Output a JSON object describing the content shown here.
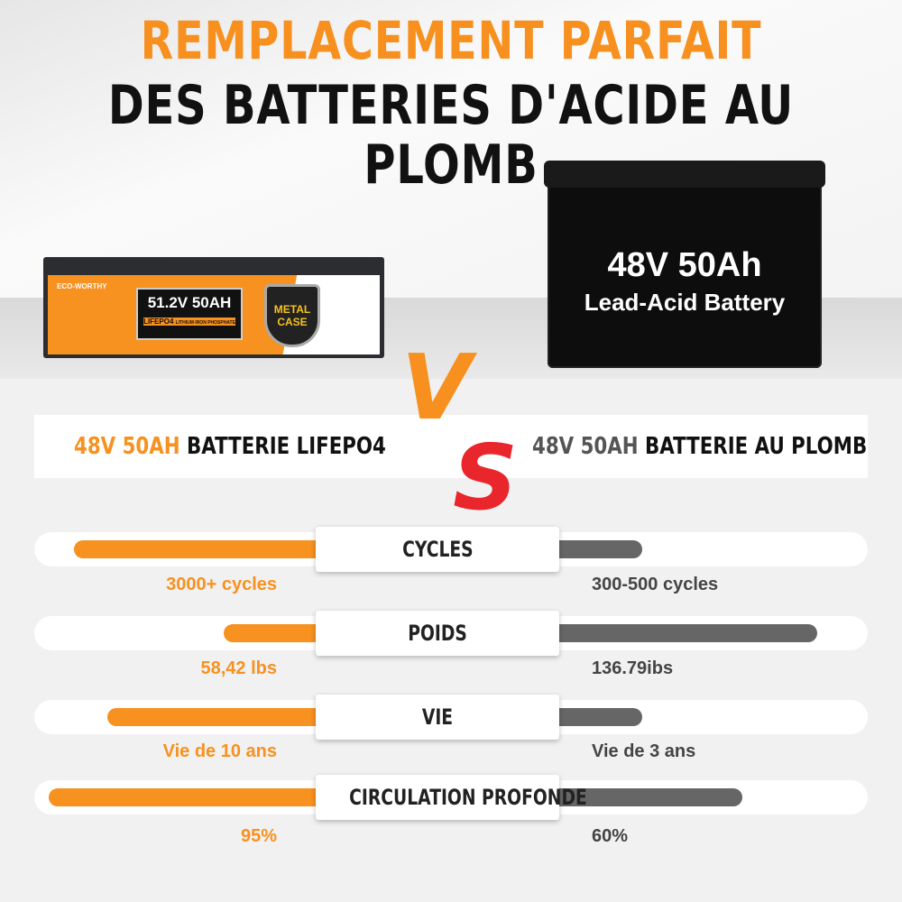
{
  "title_line1": "REMPLACEMENT PARFAIT",
  "title_line2": "DES BATTERIES D'ACIDE AU PLOMB",
  "lifepo4_product": {
    "brand": "ECO-WORTHY",
    "voltage_capacity": "51.2V 50AH",
    "chemistry": "LIFEPO4",
    "chemistry_full": "LITHIUM IRON PHOSPHATE",
    "badge": "METAL CASE"
  },
  "lead_product": {
    "voltage_capacity": "48V 50Ah",
    "name": "Lead-Acid Battery"
  },
  "vs": {
    "v": "V",
    "s": "S"
  },
  "comparison": {
    "left_highlight": "48V 50AH",
    "left_label": "BATTERIE LIFEPO4",
    "right_highlight": "48V 50AH",
    "right_label": "BATTERIE AU PLOMB"
  },
  "colors": {
    "orange": "#f7911f",
    "grey": "#666666",
    "vs_red": "#e8262b"
  },
  "rows": [
    {
      "label": "CYCLES",
      "left": "3000+ cycles",
      "right": "300-500 cycles",
      "left_fill": 0.29,
      "right_fill": 0.1
    },
    {
      "label": "POIDS",
      "left": "58,42 lbs",
      "right": "136.79ibs",
      "left_fill": 0.11,
      "right_fill": 0.31
    },
    {
      "label": "VIE",
      "left": "Vie de 10 ans",
      "right": "Vie de 3 ans",
      "left_fill": 0.25,
      "right_fill": 0.1
    },
    {
      "label": "CIRCULATION PROFONDE",
      "left": "95%",
      "right": "60%",
      "left_fill": 0.32,
      "right_fill": 0.22
    }
  ]
}
